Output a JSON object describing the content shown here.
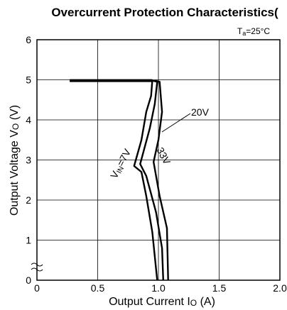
{
  "chart_data": {
    "type": "line",
    "title": "Overcurrent Protection Characteristics(",
    "condition": {
      "main": "T",
      "sub": "a",
      "rest": "=25°C"
    },
    "xlabel": {
      "main": "Output Current I",
      "sub": "O",
      "rest": " (A)"
    },
    "ylabel": {
      "main": "Output Voltage V",
      "sub": "O",
      "rest": " (V)"
    },
    "xlim": [
      0,
      2.0
    ],
    "ylim": [
      0,
      6
    ],
    "xticks": [
      "0",
      "0.5",
      "1.0",
      "1.5",
      "2.0"
    ],
    "yticks": [
      "0",
      "1",
      "2",
      "3",
      "4",
      "5",
      "6"
    ],
    "grid": true,
    "series": [
      {
        "name": "V",
        "name_sub": "IN",
        "name_rest": "=7V",
        "points": [
          [
            0.27,
            4.98
          ],
          [
            0.95,
            4.98
          ],
          [
            0.94,
            4.6
          ],
          [
            0.9,
            4.2
          ],
          [
            0.86,
            3.5
          ],
          [
            0.8,
            2.85
          ],
          [
            0.86,
            2.7
          ],
          [
            0.9,
            2.1
          ],
          [
            0.95,
            1.2
          ],
          [
            0.99,
            0
          ]
        ]
      },
      {
        "name": "20V",
        "points": [
          [
            0.95,
            4.98
          ],
          [
            0.99,
            4.95
          ],
          [
            0.97,
            4.4
          ],
          [
            0.93,
            3.8
          ],
          [
            0.85,
            2.9
          ],
          [
            0.9,
            2.6
          ],
          [
            0.98,
            1.7
          ],
          [
            1.03,
            0.8
          ],
          [
            1.04,
            0
          ]
        ]
      },
      {
        "name": "33V",
        "points": [
          [
            0.97,
            4.98
          ],
          [
            1.01,
            4.95
          ],
          [
            1.03,
            4.2
          ],
          [
            1.0,
            3.5
          ],
          [
            0.96,
            2.95
          ],
          [
            1.01,
            2.1
          ],
          [
            1.07,
            1.3
          ],
          [
            1.08,
            0
          ]
        ]
      }
    ],
    "annotations": [
      "VIN=7V",
      "20V",
      "33V"
    ]
  }
}
